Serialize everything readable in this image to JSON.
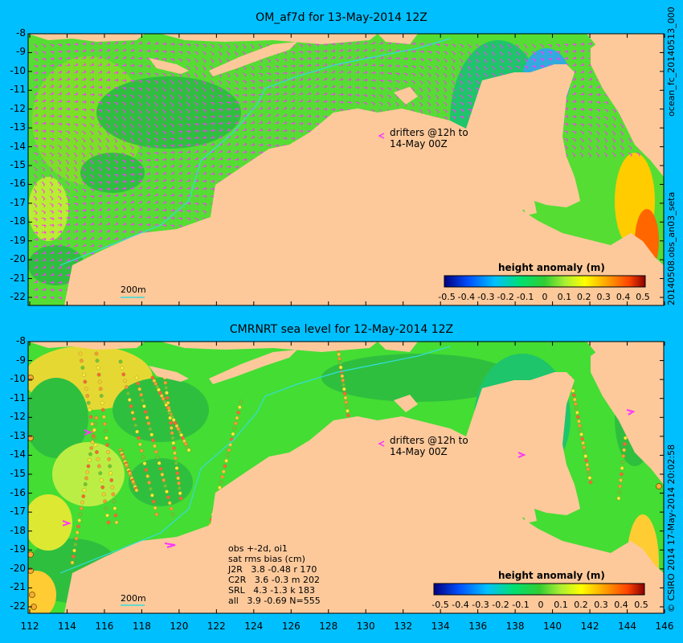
{
  "panels": [
    {
      "title": "OM_af7d for 13-May-2014 12Z",
      "drifter_note_line1": "drifters @12h to",
      "drifter_note_line2": "14-May 00Z",
      "scale_label": "200m",
      "colorbar_title": "height anomaly (m)",
      "side_label": "20140508.obs_an03_seta",
      "top_right_label": "ocean_fc_20140513_000"
    },
    {
      "title": "CMRNRT sea level  for 12-May-2014 12Z",
      "drifter_note_line1": "drifters @12h to",
      "drifter_note_line2": "14-May 00Z",
      "scale_label": "200m",
      "colorbar_title": "height anomaly (m)",
      "side_label": "© CSIRO 2014  17-May-2014 20:02:58",
      "stats": [
        "obs +-2d, oi1",
        "sat rms bias (cm)",
        "J2R   3.8 -0.48 r 170",
        "C2R   3.6 -0.3 m 202",
        "SRL   4.3 -1.3 k 183",
        "all   3.9 -0.69 N=555"
      ]
    }
  ],
  "lat_ticks": [
    "-8",
    "-9",
    "-10",
    "-11",
    "-12",
    "-13",
    "-14",
    "-15",
    "-16",
    "-17",
    "-18",
    "-19",
    "-20",
    "-21",
    "-22"
  ],
  "lon_ticks": [
    "112",
    "114",
    "116",
    "118",
    "120",
    "122",
    "124",
    "126",
    "128",
    "130",
    "132",
    "134",
    "136",
    "138",
    "140",
    "142",
    "144",
    "146"
  ],
  "colorbar_ticks": [
    "-0.5",
    "-0.4",
    "-0.3",
    "-0.2",
    "-0.1",
    "0",
    "0.1",
    "0.2",
    "0.3",
    "0.4",
    "0.5"
  ],
  "colors": {
    "background": "#00bfff",
    "land": "#fdc99b",
    "ocean_mid": "#33cc33",
    "drifter_arrow": "#ff33ff",
    "isobath": "#33dddd"
  }
}
